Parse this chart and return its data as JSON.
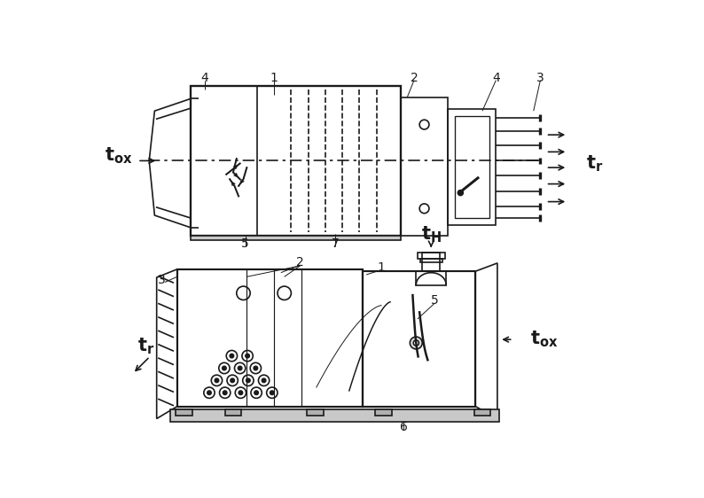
{
  "bg_color": "#ffffff",
  "lc": "#1a1a1a",
  "lw": 1.2,
  "fig_width": 7.94,
  "fig_height": 5.62
}
